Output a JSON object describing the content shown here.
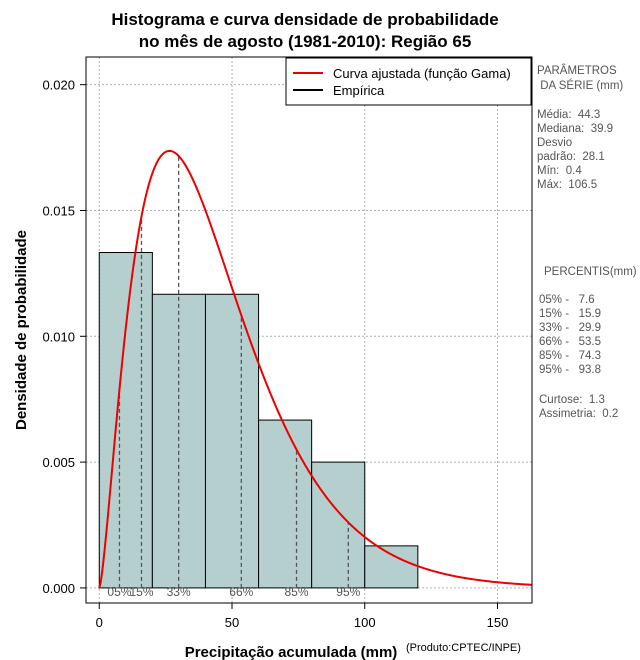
{
  "chart_data": {
    "type": "bar",
    "title": [
      "Histograma e curva densidade de probabilidade",
      "no mês de agosto (1981-2010): Região 65"
    ],
    "xlabel": "Precipitação acumulada (mm)",
    "ylabel": "Densidade de probabilidade",
    "credit": "(Produto:CPTEC/INPE)",
    "xlim": [
      -5,
      163
    ],
    "ylim": [
      -0.0006,
      0.0211
    ],
    "x_ticks": [
      0,
      50,
      100,
      150
    ],
    "y_ticks": [
      0.0,
      0.005,
      0.01,
      0.015,
      0.02
    ],
    "y_tick_labels": [
      "0.000",
      "0.005",
      "0.010",
      "0.015",
      "0.020"
    ],
    "grid": true,
    "bins": [
      {
        "from": 0,
        "to": 20,
        "density": 0.01333
      },
      {
        "from": 20,
        "to": 40,
        "density": 0.01167
      },
      {
        "from": 40,
        "to": 60,
        "density": 0.01167
      },
      {
        "from": 60,
        "to": 80,
        "density": 0.00667
      },
      {
        "from": 80,
        "to": 100,
        "density": 0.005
      },
      {
        "from": 100,
        "to": 120,
        "density": 0.00167
      }
    ],
    "bar_color": "#b5cece",
    "curve_color": "#ee0000",
    "gamma_fit": {
      "shape": 2.48,
      "scale": 17.86
    },
    "legend": {
      "position": "top-right",
      "entries": [
        {
          "label": "Curva ajustada (função Gama)",
          "color": "#ee0000"
        },
        {
          "label": "Empírica",
          "color": "#000000"
        }
      ]
    },
    "percentiles": [
      {
        "label": "05%",
        "value": 7.6
      },
      {
        "label": "15%",
        "value": 15.9
      },
      {
        "label": "33%",
        "value": 29.9
      },
      {
        "label": "66%",
        "value": 53.5
      },
      {
        "label": "85%",
        "value": 74.3
      },
      {
        "label": "95%",
        "value": 93.8
      }
    ]
  },
  "side_panel": {
    "params_title": [
      "PARÂMETROS",
      " DA SÉRIE (mm)"
    ],
    "stats": [
      "Média:  44.3",
      "Mediana:  39.9",
      "Desvio",
      "padrão:  28.1",
      "Mín:  0.4",
      "Máx:  106.5"
    ],
    "percentis_title": "PERCENTIS(mm)",
    "percentis": [
      "05% -   7.6",
      "15% -   15.9",
      "33% -   29.9",
      "66% -   53.5",
      "85% -   74.3",
      "95% -   93.8"
    ],
    "shape_stats": [
      "Curtose:  1.3",
      "Assimetria:  0.2"
    ]
  }
}
